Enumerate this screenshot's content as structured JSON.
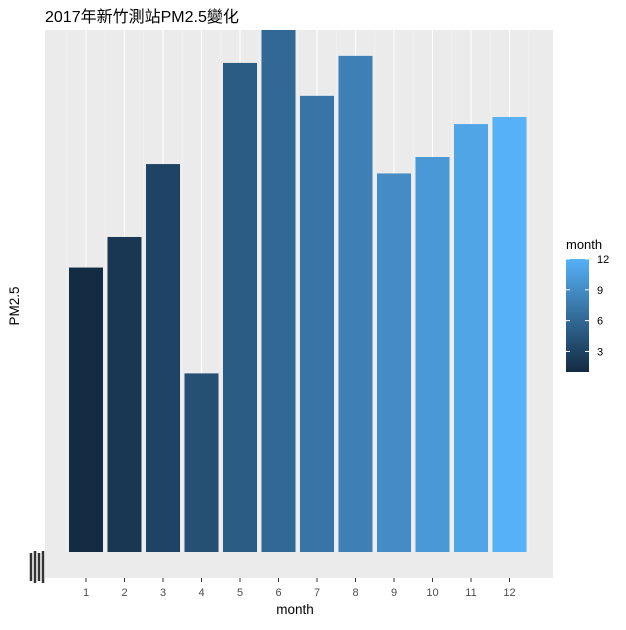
{
  "chart_data": {
    "type": "bar",
    "title": "2017年新竹測站PM2.5變化",
    "xlabel": "month",
    "ylabel": "PM2.5",
    "categories": [
      "1",
      "2",
      "3",
      "4",
      "5",
      "6",
      "7",
      "8",
      "9",
      "10",
      "11",
      "12"
    ],
    "values": [
      13.2,
      14.5,
      17.6,
      8.7,
      21.9,
      23.3,
      20.5,
      22.2,
      17.2,
      17.9,
      19.3,
      19.6
    ],
    "ylim": [
      0,
      23.3
    ],
    "y_ticks_visible": false,
    "grid": true,
    "color_scale": {
      "low": "#132B43",
      "high": "#56B1F7",
      "domain": [
        1,
        12
      ]
    },
    "legend": {
      "title": "month",
      "placement": "right",
      "breaks": [
        "3",
        "6",
        "9",
        "12"
      ]
    }
  }
}
